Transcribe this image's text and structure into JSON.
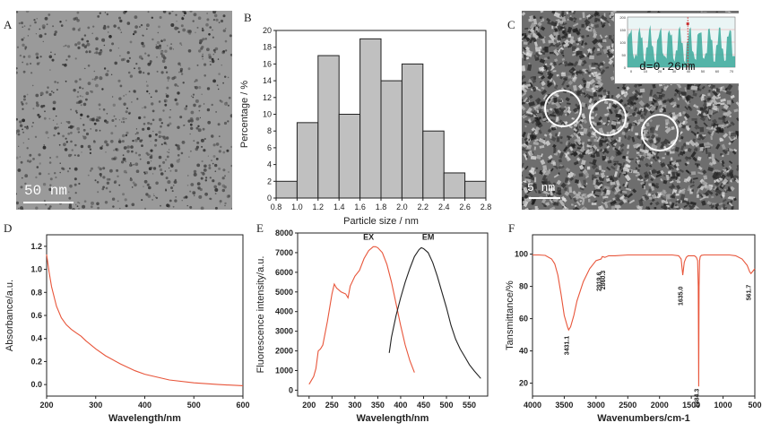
{
  "panels": {
    "A": {
      "letter": "A",
      "scale_bar": "50 nm"
    },
    "B": {
      "letter": "B"
    },
    "C": {
      "letter": "C",
      "scale_bar": "5 nm",
      "inset_label": "d=0.26nm",
      "inset_ticks_y": [
        "200",
        "150",
        "100",
        "50",
        "0"
      ],
      "inset_ticks_x": [
        "0",
        "10",
        "20",
        "30",
        "40",
        "50",
        "60",
        "70"
      ]
    },
    "D": {
      "letter": "D"
    },
    "E": {
      "letter": "E"
    },
    "F": {
      "letter": "F"
    }
  },
  "chart_data": [
    {
      "panel": "B",
      "type": "bar",
      "xlabel": "Particle size / nm",
      "ylabel": "Percentage / %",
      "bin_edges": [
        0.8,
        1.0,
        1.2,
        1.4,
        1.6,
        1.8,
        2.0,
        2.2,
        2.4,
        2.6,
        2.8
      ],
      "values": [
        2,
        9,
        17,
        10,
        19,
        14,
        16,
        8,
        3,
        2
      ],
      "xlim": [
        0.8,
        2.8
      ],
      "ylim": [
        0,
        20
      ],
      "xticks": [
        "0.8",
        "1.0",
        "1.2",
        "1.4",
        "1.6",
        "1.8",
        "2.0",
        "2.2",
        "2.4",
        "2.6",
        "2.8"
      ],
      "yticks": [
        "0",
        "2",
        "4",
        "6",
        "8",
        "10",
        "12",
        "14",
        "16",
        "18",
        "20"
      ],
      "bar_color": "#c0c0c0"
    },
    {
      "panel": "D",
      "type": "line",
      "xlabel": "Wavelength/nm",
      "ylabel": "Absorbance/a.u.",
      "xlim": [
        200,
        600
      ],
      "ylim": [
        -0.1,
        1.3
      ],
      "xticks": [
        "200",
        "300",
        "400",
        "500",
        "600"
      ],
      "yticks": [
        "0.0",
        "0.2",
        "0.4",
        "0.6",
        "0.8",
        "1.0",
        "1.2"
      ],
      "series": [
        {
          "color": "#e8553a",
          "x": [
            200,
            205,
            210,
            220,
            230,
            240,
            250,
            260,
            270,
            280,
            300,
            320,
            350,
            380,
            400,
            450,
            500,
            550,
            600
          ],
          "y": [
            1.13,
            0.98,
            0.85,
            0.68,
            0.58,
            0.52,
            0.48,
            0.45,
            0.42,
            0.38,
            0.31,
            0.25,
            0.18,
            0.12,
            0.09,
            0.04,
            0.015,
            0.0,
            -0.01
          ]
        }
      ]
    },
    {
      "panel": "E",
      "type": "line",
      "xlabel": "Wavelength/nm",
      "ylabel": "Fluorescence intensity/a.u.",
      "xlim": [
        175,
        590
      ],
      "ylim": [
        -300,
        8000
      ],
      "xticks": [
        "200",
        "250",
        "300",
        "350",
        "400",
        "450",
        "500",
        "550"
      ],
      "yticks": [
        "0",
        "1000",
        "2000",
        "3000",
        "4000",
        "5000",
        "6000",
        "7000",
        "8000"
      ],
      "annotations": [
        "EX",
        "EM"
      ],
      "series": [
        {
          "name": "EX",
          "color": "#e8553a",
          "x": [
            200,
            210,
            215,
            220,
            225,
            230,
            240,
            250,
            255,
            260,
            270,
            280,
            285,
            290,
            300,
            310,
            320,
            330,
            340,
            345,
            350,
            360,
            370,
            380,
            390,
            400,
            410,
            420,
            430
          ],
          "y": [
            300,
            700,
            1100,
            2000,
            2100,
            2300,
            3500,
            4900,
            5400,
            5200,
            5000,
            4900,
            4700,
            5300,
            5800,
            6100,
            6700,
            7100,
            7300,
            7300,
            7250,
            7000,
            6400,
            5500,
            4400,
            3300,
            2300,
            1500,
            900
          ]
        },
        {
          "name": "EM",
          "color": "#222222",
          "x": [
            375,
            380,
            390,
            400,
            410,
            420,
            430,
            440,
            445,
            450,
            460,
            470,
            480,
            490,
            500,
            510,
            520,
            530,
            540,
            550,
            560,
            575
          ],
          "y": [
            1900,
            2700,
            3800,
            4700,
            5500,
            6200,
            6800,
            7150,
            7250,
            7200,
            7000,
            6500,
            5800,
            5000,
            4200,
            3300,
            2600,
            2100,
            1700,
            1300,
            1000,
            600
          ]
        }
      ]
    },
    {
      "panel": "F",
      "type": "line",
      "xlabel": "Wavenumbers/cm-1",
      "ylabel": "Tansmittance/%",
      "xlim": [
        4000,
        500
      ],
      "ylim": [
        12,
        112
      ],
      "xticks": [
        "4000",
        "3500",
        "3000",
        "2500",
        "2000",
        "1500",
        "1000",
        "500"
      ],
      "yticks": [
        "20",
        "40",
        "60",
        "80",
        "100"
      ],
      "peak_labels": [
        "3431.1",
        "2919.6",
        "2860.3",
        "1635.0",
        "1384.3",
        "561.7"
      ],
      "series": [
        {
          "color": "#e8553a",
          "x": [
            4000,
            3900,
            3800,
            3700,
            3650,
            3600,
            3550,
            3500,
            3450,
            3431,
            3400,
            3350,
            3300,
            3200,
            3100,
            3000,
            2920,
            2900,
            2860,
            2800,
            2700,
            2500,
            2300,
            2100,
            1900,
            1800,
            1700,
            1660,
            1635,
            1610,
            1580,
            1550,
            1500,
            1450,
            1420,
            1400,
            1390,
            1384,
            1378,
            1370,
            1360,
            1340,
            1300,
            1200,
            1100,
            1000,
            900,
            800,
            700,
            620,
            580,
            561,
            540,
            520,
            500
          ],
          "y": [
            99.5,
            99.5,
            99.2,
            97,
            94,
            87,
            75,
            62,
            55,
            53,
            55,
            62,
            71,
            83,
            91,
            96,
            97,
            98.5,
            98,
            99,
            99,
            99.5,
            99.5,
            99.5,
            99.5,
            99.5,
            99,
            97,
            87,
            95,
            98,
            99,
            99,
            99,
            98,
            96,
            80,
            18,
            80,
            96,
            98.5,
            99.3,
            99.5,
            99.5,
            99.5,
            99.5,
            99.5,
            99,
            97,
            93,
            89,
            88,
            89,
            90,
            91
          ]
        }
      ]
    }
  ]
}
